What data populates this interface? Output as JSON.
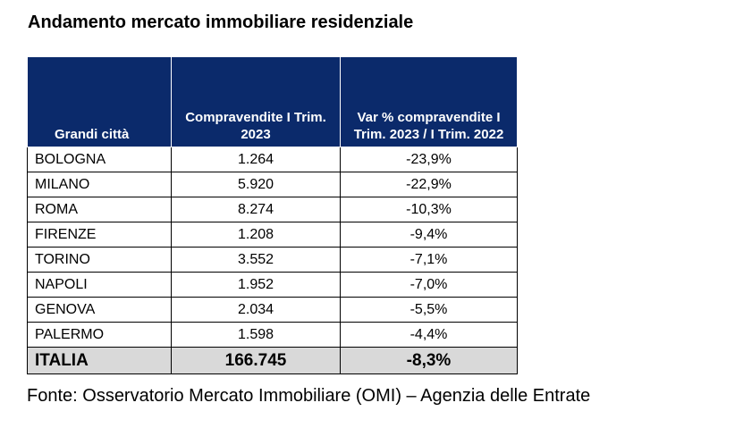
{
  "title": "Andamento mercato immobiliare residenziale",
  "table": {
    "headers": {
      "city": "Grandi città",
      "sales": "Compravendite I Trim. 2023",
      "change": "Var % compravendite I Trim. 2023 / I Trim. 2022"
    },
    "rows": [
      {
        "city": "BOLOGNA",
        "sales": "1.264",
        "change": "-23,9%"
      },
      {
        "city": "MILANO",
        "sales": "5.920",
        "change": "-22,9%"
      },
      {
        "city": "ROMA",
        "sales": "8.274",
        "change": "-10,3%"
      },
      {
        "city": "FIRENZE",
        "sales": "1.208",
        "change": "-9,4%"
      },
      {
        "city": "TORINO",
        "sales": "3.552",
        "change": "-7,1%"
      },
      {
        "city": "NAPOLI",
        "sales": "1.952",
        "change": "-7,0%"
      },
      {
        "city": "GENOVA",
        "sales": "2.034",
        "change": "-5,5%"
      },
      {
        "city": "PALERMO",
        "sales": "1.598",
        "change": "-4,4%"
      }
    ],
    "total": {
      "city": "ITALIA",
      "sales": "166.745",
      "change": "-8,3%"
    }
  },
  "source": "Fonte: Osservatorio Mercato Immobiliare (OMI) – Agenzia delle Entrate",
  "colors": {
    "header_bg": "#0b2a6b",
    "total_bg": "#d9d9d9"
  }
}
